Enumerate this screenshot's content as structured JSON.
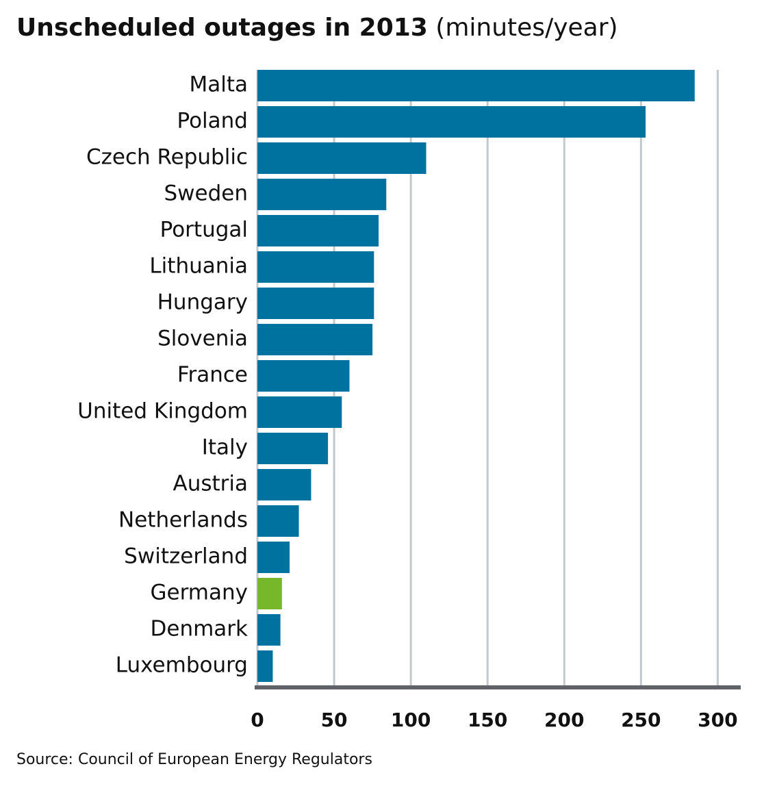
{
  "chart_data": {
    "type": "bar",
    "orientation": "horizontal",
    "title": "Unscheduled outages in 2013",
    "subtitle": "(minutes/year)",
    "source": "Source: Council of European Energy Regulators",
    "categories": [
      "Malta",
      "Poland",
      "Czech Republic",
      "Sweden",
      "Portugal",
      "Lithuania",
      "Hungary",
      "Slovenia",
      "France",
      "United Kingdom",
      "Italy",
      "Austria",
      "Netherlands",
      "Switzerland",
      "Germany",
      "Denmark",
      "Luxembourg"
    ],
    "values": [
      285,
      253,
      110,
      84,
      79,
      76,
      76,
      75,
      60,
      55,
      46,
      35,
      27,
      21,
      16,
      15,
      10
    ],
    "colors": [
      "#00729f",
      "#00729f",
      "#00729f",
      "#00729f",
      "#00729f",
      "#00729f",
      "#00729f",
      "#00729f",
      "#00729f",
      "#00729f",
      "#00729f",
      "#00729f",
      "#00729f",
      "#00729f",
      "#76b82a",
      "#00729f",
      "#00729f"
    ],
    "xlim": [
      0,
      315
    ],
    "xticks": [
      0,
      50,
      100,
      150,
      200,
      250,
      300
    ],
    "grid": true
  }
}
